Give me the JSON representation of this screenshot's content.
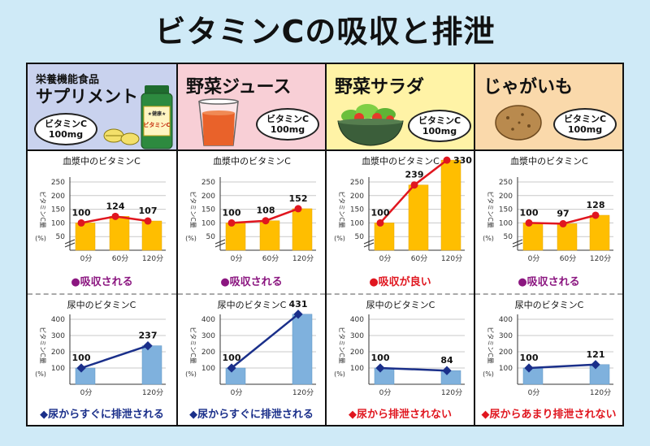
{
  "title": "ビタミンCの吸収と排泄",
  "colors": {
    "header_bg": [
      "#c9d2ee",
      "#f8cfd6",
      "#fff3a6",
      "#fad9ab"
    ],
    "bar": "#ffbe00",
    "line_blood": "#e0161f",
    "bar_urine": "#7fb1dd",
    "line_urine": "#1a2f8a",
    "note_purple": "#8b1680",
    "note_red": "#e0161f",
    "note_blue": "#1a2f8a"
  },
  "columns": [
    {
      "label_small": "栄養機能食品",
      "label": "サプリメント",
      "bubble_line1": "ビタミンC",
      "bubble_line2": "100mg",
      "illustration": "supplement-bottle-and-tablets",
      "bottle_label_small": "★健康★",
      "bottle_label": "ビタミンC",
      "blood_note": "●吸収される",
      "blood_note_color": "#8b1680",
      "urine_note": "◆尿からすぐに排泄される",
      "urine_note_color": "#1a2f8a"
    },
    {
      "label": "野菜ジュース",
      "bubble_line1": "ビタミンC",
      "bubble_line2": "100mg",
      "illustration": "juice-glass",
      "blood_note": "●吸収される",
      "blood_note_color": "#8b1680",
      "urine_note": "◆尿からすぐに排泄される",
      "urine_note_color": "#1a2f8a"
    },
    {
      "label": "野菜サラダ",
      "bubble_line1": "ビタミンC",
      "bubble_line2": "100mg",
      "illustration": "salad-bowl",
      "blood_note": "●吸収が良い",
      "blood_note_color": "#e0161f",
      "urine_note": "◆尿から排泄されない",
      "urine_note_color": "#e0161f"
    },
    {
      "label": "じゃがいも",
      "bubble_line1": "ビタミンC",
      "bubble_line2": "100mg",
      "illustration": "potato",
      "blood_note": "●吸収される",
      "blood_note_color": "#8b1680",
      "urine_note": "◆尿からあまり排泄されない",
      "urine_note_color": "#e0161f"
    }
  ],
  "chart_data": [
    {
      "type": "bar",
      "title": "血漿中のビタミンC",
      "ylabel": "ビタミンC量",
      "yunit": "(%)",
      "categories": [
        "0分",
        "60分",
        "120分"
      ],
      "values": [
        100,
        124,
        107
      ],
      "ylim": [
        0,
        250
      ],
      "yticks": [
        50,
        100,
        150,
        200,
        250
      ],
      "axis_break": true
    },
    {
      "type": "bar",
      "title": "血漿中のビタミンC",
      "ylabel": "ビタミンC量",
      "yunit": "(%)",
      "categories": [
        "0分",
        "60分",
        "120分"
      ],
      "values": [
        100,
        108,
        152
      ],
      "ylim": [
        0,
        250
      ],
      "yticks": [
        50,
        100,
        150,
        200,
        250
      ],
      "axis_break": true
    },
    {
      "type": "bar",
      "title": "血漿中のビタミンC",
      "ylabel": "ビタミンC量",
      "yunit": "(%)",
      "categories": [
        "0分",
        "60分",
        "120分"
      ],
      "values": [
        100,
        239,
        330
      ],
      "ylim": [
        0,
        250
      ],
      "yticks": [
        50,
        100,
        150,
        200,
        250
      ],
      "axis_break": true
    },
    {
      "type": "bar",
      "title": "血漿中のビタミンC",
      "ylabel": "ビタミンC量",
      "yunit": "(%)",
      "categories": [
        "0分",
        "60分",
        "120分"
      ],
      "values": [
        100,
        97,
        128
      ],
      "ylim": [
        0,
        250
      ],
      "yticks": [
        50,
        100,
        150,
        200,
        250
      ],
      "axis_break": true
    },
    {
      "type": "bar",
      "title": "尿中のビタミンC",
      "ylabel": "ビタミンC量",
      "yunit": "(%)",
      "categories": [
        "0分",
        "120分"
      ],
      "values": [
        100,
        237
      ],
      "ylim": [
        0,
        400
      ],
      "yticks": [
        100,
        200,
        300,
        400
      ],
      "axis_break": false
    },
    {
      "type": "bar",
      "title": "尿中のビタミンC",
      "ylabel": "ビタミンC量",
      "yunit": "(%)",
      "categories": [
        "0分",
        "120分"
      ],
      "values": [
        100,
        431
      ],
      "ylim": [
        0,
        400
      ],
      "yticks": [
        100,
        200,
        300,
        400
      ],
      "axis_break": false
    },
    {
      "type": "bar",
      "title": "尿中のビタミンC",
      "ylabel": "ビタミンC量",
      "yunit": "(%)",
      "categories": [
        "0分",
        "120分"
      ],
      "values": [
        100,
        84
      ],
      "ylim": [
        0,
        400
      ],
      "yticks": [
        100,
        200,
        300,
        400
      ],
      "axis_break": false
    },
    {
      "type": "bar",
      "title": "尿中のビタミンC",
      "ylabel": "ビタミンC量",
      "yunit": "(%)",
      "categories": [
        "0分",
        "120分"
      ],
      "values": [
        100,
        121
      ],
      "ylim": [
        0,
        400
      ],
      "yticks": [
        100,
        200,
        300,
        400
      ],
      "axis_break": false
    }
  ]
}
